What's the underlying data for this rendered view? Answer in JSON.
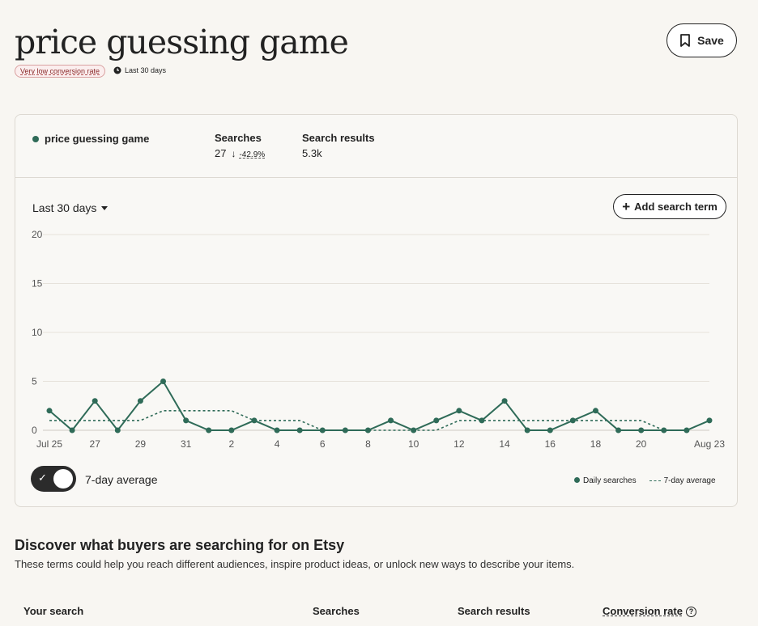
{
  "header": {
    "title": "price guessing game",
    "badge": "Very low conversion rate",
    "period_tag": "Last 30 days",
    "save_label": "Save"
  },
  "summary": {
    "term": "price guessing game",
    "searches_label": "Searches",
    "searches_value": "27",
    "searches_change": "-42.9%",
    "results_label": "Search results",
    "results_value": "5.3k"
  },
  "controls": {
    "period": "Last 30 days",
    "add_term": "Add search term",
    "toggle_label": "7-day average",
    "toggle_on": true
  },
  "legend": {
    "daily": "Daily searches",
    "average": "7-day average"
  },
  "discover": {
    "title": "Discover what buyers are searching for on Etsy",
    "description": "These terms could help you reach different audiences, inspire product ideas, or unlock new ways to describe your items.",
    "columns": [
      "Your search",
      "Searches",
      "Search results",
      "Conversion rate"
    ]
  },
  "colors": {
    "series": "#2f6b58",
    "badge_text": "#8a2a2a"
  },
  "chart_data": {
    "type": "line",
    "x": [
      "Jul 25",
      "26",
      "27",
      "28",
      "29",
      "30",
      "31",
      "1",
      "2",
      "3",
      "4",
      "5",
      "6",
      "7",
      "8",
      "9",
      "10",
      "11",
      "12",
      "13",
      "14",
      "15",
      "16",
      "17",
      "18",
      "19",
      "20",
      "21",
      "22",
      "Aug 23"
    ],
    "x_tick_labels": [
      "Jul 25",
      "27",
      "29",
      "31",
      "2",
      "4",
      "6",
      "8",
      "10",
      "12",
      "14",
      "16",
      "18",
      "20",
      "Aug 23"
    ],
    "y_ticks": [
      0,
      5,
      10,
      15,
      20
    ],
    "ylim": [
      0,
      20
    ],
    "series": [
      {
        "name": "Daily searches",
        "style": "solid-markers",
        "values": [
          2,
          0,
          3,
          0,
          3,
          5,
          1,
          0,
          0,
          1,
          0,
          0,
          0,
          0,
          0,
          1,
          0,
          1,
          2,
          1,
          3,
          0,
          0,
          1,
          2,
          0,
          0,
          0,
          0,
          1
        ]
      },
      {
        "name": "7-day average",
        "style": "dashed",
        "values": [
          1,
          1,
          1,
          1,
          1,
          2,
          2,
          2,
          2,
          1,
          1,
          1,
          0,
          0,
          0,
          0,
          0,
          0,
          1,
          1,
          1,
          1,
          1,
          1,
          1,
          1,
          1,
          0,
          0,
          1
        ]
      }
    ],
    "grid": true,
    "legend_position": "bottom-right"
  }
}
